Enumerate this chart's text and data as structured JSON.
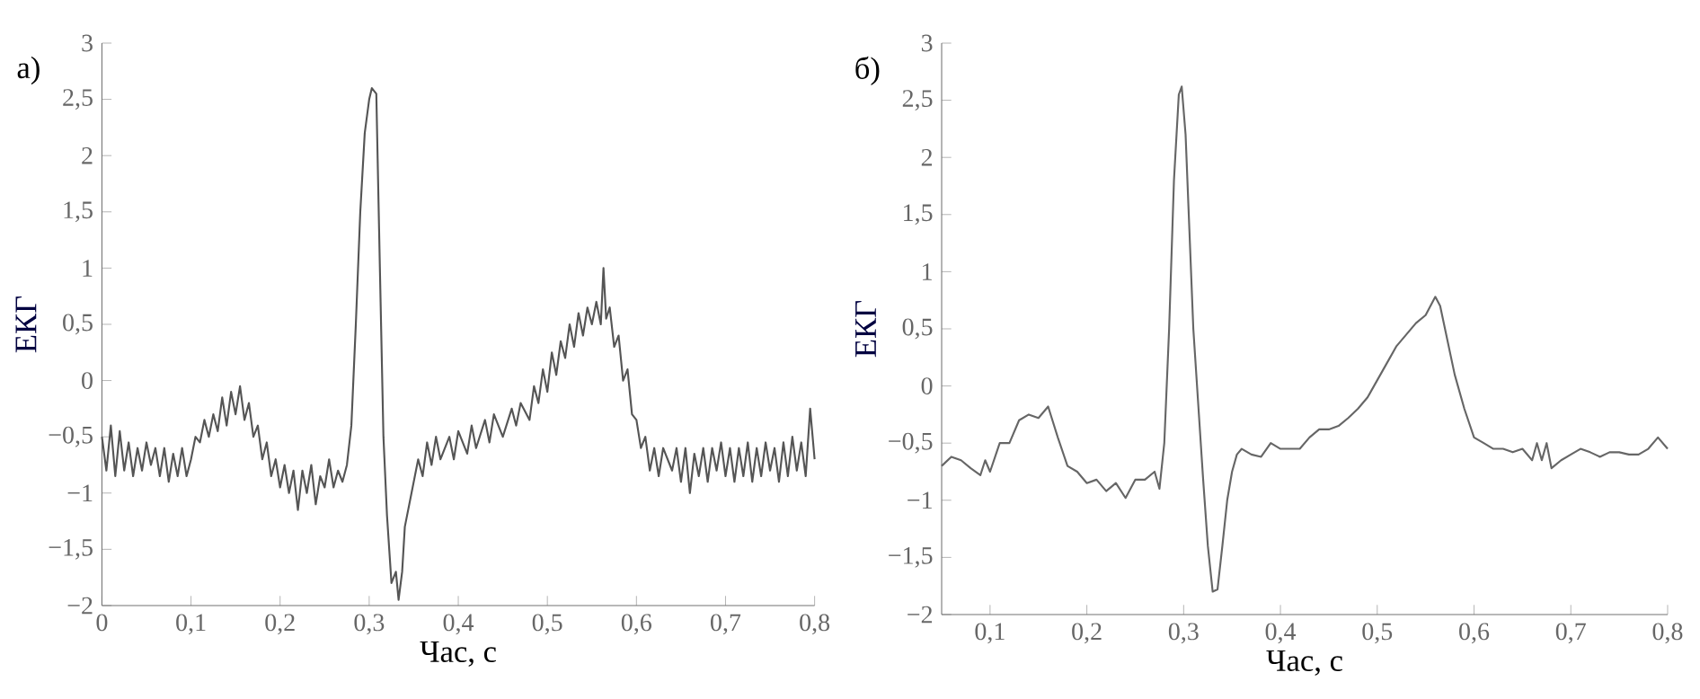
{
  "chart_data": [
    {
      "type": "line",
      "title": "а)",
      "xlabel": "Час, с",
      "ylabel": "ЕКГ",
      "xlim": [
        0,
        0.8
      ],
      "ylim": [
        -2,
        3
      ],
      "xticks": [
        0,
        {
          "value": 0.1,
          "label": "0,1"
        },
        {
          "value": 0.2,
          "label": "0,2"
        },
        {
          "value": 0.3,
          "label": "0,3"
        },
        {
          "value": 0.4,
          "label": "0,4"
        },
        {
          "value": 0.5,
          "label": "0,5"
        },
        {
          "value": 0.6,
          "label": "0,6"
        },
        {
          "value": 0.7,
          "label": "0,7"
        },
        {
          "value": 0.8,
          "label": "0,8"
        }
      ],
      "yticks": [
        {
          "value": -2,
          "label": "−2"
        },
        {
          "value": -1.5,
          "label": "−1,5"
        },
        {
          "value": -1,
          "label": "−1"
        },
        {
          "value": -0.5,
          "label": "−0,5"
        },
        0,
        {
          "value": 0.5,
          "label": "0,5"
        },
        1,
        {
          "value": 1.5,
          "label": "1,5"
        },
        2,
        {
          "value": 2.5,
          "label": "2,5"
        },
        3
      ],
      "series": [
        {
          "color": "#555555",
          "x": [
            0,
            0.005,
            0.01,
            0.015,
            0.02,
            0.025,
            0.03,
            0.035,
            0.04,
            0.045,
            0.05,
            0.055,
            0.06,
            0.065,
            0.07,
            0.075,
            0.08,
            0.085,
            0.09,
            0.095,
            0.1,
            0.105,
            0.11,
            0.115,
            0.12,
            0.125,
            0.13,
            0.135,
            0.14,
            0.145,
            0.15,
            0.155,
            0.16,
            0.165,
            0.17,
            0.175,
            0.18,
            0.185,
            0.19,
            0.195,
            0.2,
            0.205,
            0.21,
            0.215,
            0.22,
            0.225,
            0.23,
            0.235,
            0.24,
            0.245,
            0.25,
            0.255,
            0.26,
            0.265,
            0.27,
            0.275,
            0.28,
            0.285,
            0.29,
            0.295,
            0.3,
            0.303,
            0.308,
            0.312,
            0.316,
            0.32,
            0.325,
            0.33,
            0.333,
            0.337,
            0.34,
            0.345,
            0.35,
            0.355,
            0.36,
            0.365,
            0.37,
            0.375,
            0.38,
            0.39,
            0.395,
            0.4,
            0.41,
            0.415,
            0.42,
            0.43,
            0.435,
            0.44,
            0.45,
            0.46,
            0.465,
            0.47,
            0.48,
            0.485,
            0.49,
            0.495,
            0.5,
            0.505,
            0.51,
            0.515,
            0.52,
            0.525,
            0.53,
            0.535,
            0.54,
            0.545,
            0.55,
            0.555,
            0.56,
            0.563,
            0.566,
            0.57,
            0.575,
            0.58,
            0.585,
            0.59,
            0.595,
            0.6,
            0.605,
            0.61,
            0.615,
            0.62,
            0.625,
            0.63,
            0.64,
            0.645,
            0.65,
            0.655,
            0.66,
            0.665,
            0.67,
            0.675,
            0.68,
            0.685,
            0.69,
            0.695,
            0.7,
            0.705,
            0.71,
            0.715,
            0.72,
            0.725,
            0.73,
            0.735,
            0.74,
            0.745,
            0.75,
            0.755,
            0.76,
            0.765,
            0.77,
            0.775,
            0.78,
            0.785,
            0.79,
            0.795,
            0.8
          ],
          "values": [
            -0.5,
            -0.8,
            -0.4,
            -0.85,
            -0.45,
            -0.8,
            -0.55,
            -0.85,
            -0.6,
            -0.8,
            -0.55,
            -0.75,
            -0.6,
            -0.85,
            -0.6,
            -0.9,
            -0.65,
            -0.85,
            -0.6,
            -0.85,
            -0.7,
            -0.5,
            -0.55,
            -0.35,
            -0.5,
            -0.3,
            -0.45,
            -0.15,
            -0.4,
            -0.1,
            -0.3,
            -0.05,
            -0.35,
            -0.2,
            -0.5,
            -0.4,
            -0.7,
            -0.55,
            -0.85,
            -0.7,
            -0.95,
            -0.75,
            -1.0,
            -0.8,
            -1.15,
            -0.8,
            -1.0,
            -0.75,
            -1.1,
            -0.85,
            -0.95,
            -0.7,
            -0.95,
            -0.8,
            -0.9,
            -0.75,
            -0.4,
            0.5,
            1.5,
            2.2,
            2.5,
            2.6,
            2.55,
            1.0,
            -0.5,
            -1.2,
            -1.8,
            -1.7,
            -1.95,
            -1.7,
            -1.3,
            -1.1,
            -0.9,
            -0.7,
            -0.85,
            -0.55,
            -0.75,
            -0.5,
            -0.7,
            -0.5,
            -0.7,
            -0.45,
            -0.65,
            -0.4,
            -0.6,
            -0.35,
            -0.55,
            -0.3,
            -0.5,
            -0.25,
            -0.4,
            -0.2,
            -0.35,
            -0.05,
            -0.2,
            0.1,
            -0.1,
            0.25,
            0.05,
            0.35,
            0.2,
            0.5,
            0.3,
            0.6,
            0.4,
            0.65,
            0.5,
            0.7,
            0.5,
            1.0,
            0.55,
            0.65,
            0.3,
            0.4,
            0.0,
            0.1,
            -0.3,
            -0.35,
            -0.6,
            -0.5,
            -0.8,
            -0.6,
            -0.85,
            -0.6,
            -0.8,
            -0.6,
            -0.9,
            -0.6,
            -1.0,
            -0.65,
            -0.85,
            -0.6,
            -0.9,
            -0.6,
            -0.8,
            -0.55,
            -0.85,
            -0.6,
            -0.9,
            -0.6,
            -0.85,
            -0.55,
            -0.9,
            -0.6,
            -0.85,
            -0.55,
            -0.8,
            -0.6,
            -0.9,
            -0.55,
            -0.85,
            -0.5,
            -0.8,
            -0.55,
            -0.85,
            -0.25,
            -0.7
          ]
        }
      ]
    },
    {
      "type": "line",
      "title": "б)",
      "xlabel": "Час, с",
      "ylabel": "ЕКГ",
      "xlim": [
        0.05,
        0.8
      ],
      "ylim": [
        -2,
        3
      ],
      "xticks": [
        {
          "value": 0.1,
          "label": "0,1"
        },
        {
          "value": 0.2,
          "label": "0,2"
        },
        {
          "value": 0.3,
          "label": "0,3"
        },
        {
          "value": 0.4,
          "label": "0,4"
        },
        {
          "value": 0.5,
          "label": "0,5"
        },
        {
          "value": 0.6,
          "label": "0,6"
        },
        {
          "value": 0.7,
          "label": "0,7"
        },
        {
          "value": 0.8,
          "label": "0,8"
        }
      ],
      "yticks": [
        {
          "value": -2,
          "label": "−2"
        },
        {
          "value": -1.5,
          "label": "−1,5"
        },
        {
          "value": -1,
          "label": "−1"
        },
        {
          "value": -0.5,
          "label": "−0,5"
        },
        0,
        {
          "value": 0.5,
          "label": "0,5"
        },
        1,
        {
          "value": 1.5,
          "label": "1,5"
        },
        2,
        {
          "value": 2.5,
          "label": "2,5"
        },
        3
      ],
      "series": [
        {
          "color": "#666666",
          "x": [
            0.05,
            0.06,
            0.07,
            0.08,
            0.09,
            0.095,
            0.1,
            0.11,
            0.12,
            0.13,
            0.14,
            0.15,
            0.16,
            0.17,
            0.18,
            0.19,
            0.2,
            0.21,
            0.22,
            0.23,
            0.24,
            0.25,
            0.26,
            0.27,
            0.275,
            0.28,
            0.285,
            0.29,
            0.295,
            0.298,
            0.302,
            0.31,
            0.32,
            0.325,
            0.33,
            0.335,
            0.34,
            0.345,
            0.35,
            0.355,
            0.36,
            0.37,
            0.38,
            0.39,
            0.4,
            0.41,
            0.42,
            0.43,
            0.44,
            0.45,
            0.46,
            0.47,
            0.48,
            0.49,
            0.5,
            0.51,
            0.52,
            0.53,
            0.54,
            0.55,
            0.56,
            0.565,
            0.57,
            0.58,
            0.59,
            0.6,
            0.61,
            0.62,
            0.63,
            0.64,
            0.65,
            0.66,
            0.665,
            0.67,
            0.675,
            0.68,
            0.69,
            0.7,
            0.71,
            0.72,
            0.73,
            0.74,
            0.75,
            0.76,
            0.77,
            0.78,
            0.79,
            0.8
          ],
          "values": [
            -0.7,
            -0.62,
            -0.65,
            -0.72,
            -0.78,
            -0.65,
            -0.75,
            -0.5,
            -0.5,
            -0.3,
            -0.25,
            -0.28,
            -0.18,
            -0.45,
            -0.7,
            -0.75,
            -0.85,
            -0.82,
            -0.92,
            -0.85,
            -0.98,
            -0.82,
            -0.82,
            -0.75,
            -0.9,
            -0.5,
            0.5,
            1.8,
            2.55,
            2.62,
            2.2,
            0.5,
            -0.8,
            -1.4,
            -1.8,
            -1.78,
            -1.4,
            -1.0,
            -0.75,
            -0.6,
            -0.55,
            -0.6,
            -0.62,
            -0.5,
            -0.55,
            -0.55,
            -0.55,
            -0.45,
            -0.38,
            -0.38,
            -0.35,
            -0.28,
            -0.2,
            -0.1,
            0.05,
            0.2,
            0.35,
            0.45,
            0.55,
            0.62,
            0.78,
            0.7,
            0.5,
            0.1,
            -0.2,
            -0.45,
            -0.5,
            -0.55,
            -0.55,
            -0.58,
            -0.55,
            -0.65,
            -0.5,
            -0.65,
            -0.5,
            -0.72,
            -0.65,
            -0.6,
            -0.55,
            -0.58,
            -0.62,
            -0.58,
            -0.58,
            -0.6,
            -0.6,
            -0.55,
            -0.45,
            -0.55
          ]
        }
      ]
    }
  ]
}
